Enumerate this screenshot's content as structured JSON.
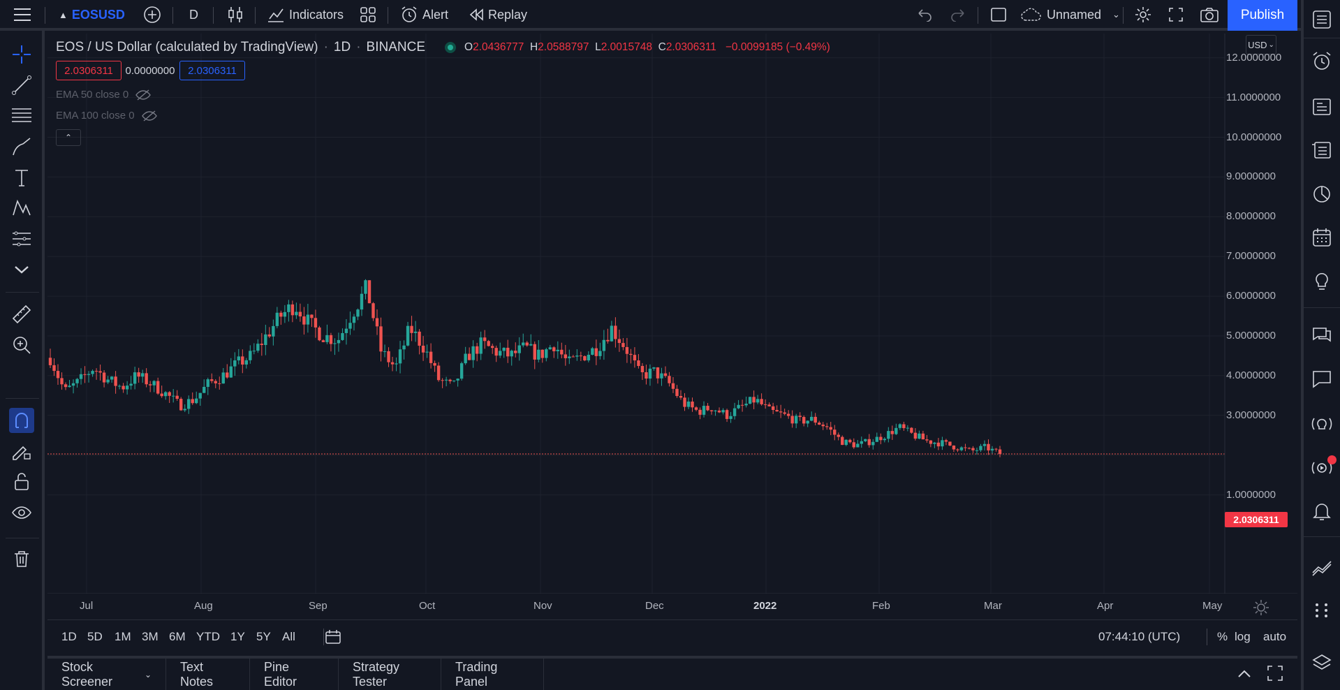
{
  "topbar": {
    "symbol": "EOSUSD",
    "interval": "D",
    "indicators_label": "Indicators",
    "alert_label": "Alert",
    "replay_label": "Replay",
    "layout_name": "Unnamed",
    "publish_label": "Publish"
  },
  "legend": {
    "title": "EOS / US Dollar (calculated by TradingView)",
    "interval": "1D",
    "exchange": "BINANCE",
    "o_key": "O",
    "o_val": "2.0436777",
    "h_key": "H",
    "h_val": "2.0588797",
    "l_key": "L",
    "l_val": "2.0015748",
    "c_key": "C",
    "c_val": "2.0306311",
    "change": "−0.0099185 (−0.49%)",
    "bid": "2.0306311",
    "spread": "0.0000000",
    "ask": "2.0306311",
    "ema50": "EMA 50 close 0",
    "ema100": "EMA 100 close 0"
  },
  "price_axis": {
    "currency": "USD",
    "last_price": "2.0306311",
    "labels": [
      "12.0000000",
      "11.0000000",
      "10.0000000",
      "9.0000000",
      "8.0000000",
      "7.0000000",
      "6.0000000",
      "5.0000000",
      "4.0000000",
      "3.0000000",
      "1.0000000"
    ]
  },
  "time_axis": {
    "labels": [
      "Jul",
      "Aug",
      "Sep",
      "Oct",
      "Nov",
      "Dec",
      "2022",
      "Feb",
      "Mar",
      "Apr",
      "May"
    ]
  },
  "bottom": {
    "ranges": [
      "1D",
      "5D",
      "1M",
      "3M",
      "6M",
      "YTD",
      "1Y",
      "5Y",
      "All"
    ],
    "clock": "07:44:10 (UTC)",
    "percent": "%",
    "log": "log",
    "auto": "auto"
  },
  "panels": [
    "Stock Screener",
    "Text Notes",
    "Pine Editor",
    "Strategy Tester",
    "Trading Panel"
  ],
  "colors": {
    "up": "#26a69a",
    "down": "#ef5350",
    "accent": "#2962ff",
    "background": "#131722"
  },
  "chart_data": {
    "type": "candlestick",
    "title": "EOS / US Dollar (calculated by TradingView)",
    "yscale": "linear",
    "ylim": [
      0.5,
      12.0
    ],
    "x_ticks": [
      "Jul",
      "Aug",
      "Sep",
      "Oct",
      "Nov",
      "Dec",
      "2022",
      "Feb",
      "Mar",
      "Apr",
      "May"
    ],
    "y_ticks": [
      1,
      3,
      4,
      5,
      6,
      7,
      8,
      9,
      10,
      11,
      12
    ],
    "close_series": [
      4.45,
      3.6,
      3.85,
      4.2,
      3.9,
      3.7,
      4.0,
      3.8,
      3.55,
      3.25,
      3.4,
      3.8,
      4.0,
      4.3,
      4.5,
      5.0,
      5.5,
      5.8,
      5.3,
      5.0,
      4.9,
      5.6,
      6.2,
      4.6,
      4.2,
      5.2,
      4.7,
      3.9,
      3.7,
      4.5,
      4.8,
      4.6,
      4.5,
      4.7,
      4.5,
      4.8,
      4.3,
      4.5,
      4.7,
      5.2,
      4.7,
      4.0,
      4.1,
      3.8,
      3.3,
      3.1,
      3.2,
      3.0,
      3.2,
      3.4,
      3.1,
      3.0,
      2.85,
      2.9,
      2.7,
      2.35,
      2.25,
      2.35,
      2.5,
      2.7,
      2.5,
      2.35,
      2.3,
      2.2,
      2.1,
      2.2,
      2.03
    ],
    "last_price": 2.0306311
  }
}
